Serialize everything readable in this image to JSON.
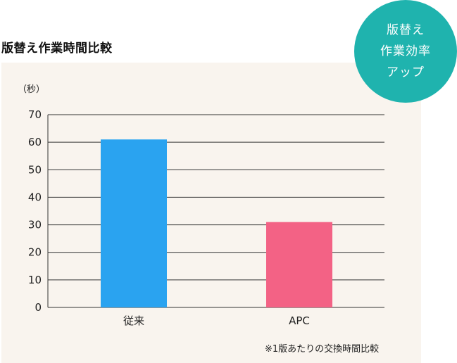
{
  "title": "版替え作業時間比較",
  "badge": {
    "lines": [
      "版替え",
      "作業効率",
      "アップ"
    ]
  },
  "footnote": "※1版あたりの交換時間比較",
  "chart_data": {
    "type": "bar",
    "unit_label": "（秒）",
    "categories": [
      "従来",
      "APC"
    ],
    "values": [
      61,
      31
    ],
    "colors": [
      "#2aa3f0",
      "#f36285"
    ],
    "ylim": [
      0,
      70
    ],
    "yticks": [
      0,
      10,
      20,
      30,
      40,
      50,
      60,
      70
    ],
    "grid": true
  }
}
